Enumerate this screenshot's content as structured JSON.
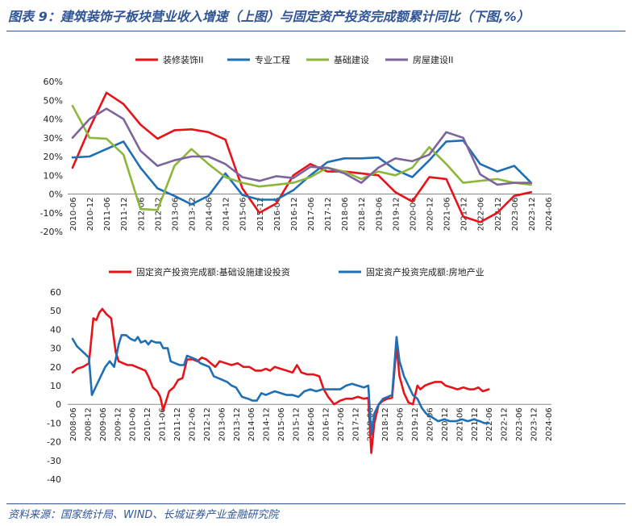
{
  "title": "图表 9：建筑装饰子板块营业收入增速（上图）与固定资产投资完成额累计同比（下图,%）",
  "source": "资料来源：国家统计局、WIND、长城证券产业金融研究院",
  "chart_data": [
    {
      "type": "line",
      "ylim": [
        -20,
        60
      ],
      "yticks": [
        "-20%",
        "-10%",
        "0%",
        "10%",
        "20%",
        "30%",
        "40%",
        "50%",
        "60%"
      ],
      "x_labels": [
        "2010-06",
        "2010-12",
        "2011-06",
        "2011-12",
        "2012-06",
        "2012-12",
        "2013-06",
        "2013-12",
        "2014-06",
        "2014-12",
        "2015-06",
        "2015-12",
        "2016-06",
        "2016-12",
        "2017-06",
        "2017-12",
        "2018-06",
        "2018-12",
        "2019-06",
        "2019-12",
        "2020-06",
        "2020-12",
        "2021-06",
        "2021-12",
        "2022-06",
        "2022-12",
        "2023-06",
        "2023-12",
        "2024-06"
      ],
      "series": [
        {
          "name": "装修装饰II",
          "color": "#E8131A",
          "values": [
            14,
            35,
            54,
            48,
            37,
            29.5,
            34,
            34.5,
            33,
            29,
            3,
            -10,
            -5,
            10,
            16,
            12,
            12,
            11,
            10,
            1,
            -4,
            9,
            8,
            -12,
            -15,
            -10,
            -1,
            1,
            null
          ]
        },
        {
          "name": "专业工程",
          "color": "#1F6FB5",
          "values": [
            19.5,
            20,
            24,
            28,
            14,
            3,
            -1,
            -5.5,
            -1,
            11,
            -0.5,
            -3,
            -3,
            2,
            10,
            17,
            19,
            19,
            19.5,
            13,
            9,
            18,
            28,
            28.5,
            16,
            12,
            15,
            6,
            null
          ]
        },
        {
          "name": "基础建设",
          "color": "#8CB63C",
          "values": [
            47,
            30,
            29.5,
            21,
            -8,
            -8.5,
            15,
            24,
            16,
            9,
            6,
            4,
            5,
            6,
            9,
            14,
            12,
            8,
            12,
            10,
            14,
            25,
            16,
            6,
            7,
            8,
            6,
            5,
            null
          ]
        },
        {
          "name": "房屋建设II",
          "color": "#7E649E",
          "values": [
            30,
            40,
            45.5,
            40,
            23,
            15,
            18,
            20,
            20,
            16,
            9,
            7,
            9.5,
            8.5,
            14.5,
            14,
            11,
            6,
            14,
            19,
            17.5,
            21,
            33,
            30,
            10.5,
            5,
            6,
            6,
            null
          ]
        }
      ]
    },
    {
      "type": "line",
      "ylim": [
        -40,
        60
      ],
      "yticks": [
        "-40",
        "-30",
        "-20",
        "-10",
        "0",
        "10",
        "20",
        "30",
        "40",
        "50",
        "60"
      ],
      "x_labels": [
        "2008-06",
        "2008-12",
        "2009-06",
        "2009-12",
        "2010-06",
        "2010-12",
        "2011-06",
        "2011-12",
        "2012-06",
        "2012-12",
        "2013-06",
        "2013-12",
        "2014-06",
        "2014-12",
        "2015-06",
        "2015-12",
        "2016-06",
        "2016-12",
        "2017-06",
        "2017-12",
        "2018-06",
        "2018-12",
        "2019-06",
        "2019-12",
        "2020-06",
        "2020-12",
        "2021-06",
        "2021-12",
        "2022-06",
        "2022-12",
        "2023-06",
        "2023-12",
        "2024-06"
      ],
      "series": [
        {
          "name": "固定资产投资完成额:基础设施建设投资",
          "color": "#E8131A",
          "points": [
            [
              0,
              17
            ],
            [
              0.3,
              19
            ],
            [
              0.7,
              20
            ],
            [
              1.1,
              22
            ],
            [
              1.4,
              46
            ],
            [
              1.6,
              45
            ],
            [
              1.8,
              49
            ],
            [
              2.0,
              51
            ],
            [
              2.3,
              48
            ],
            [
              2.6,
              46
            ],
            [
              2.9,
              28
            ],
            [
              3.1,
              23
            ],
            [
              3.4,
              22
            ],
            [
              3.7,
              21
            ],
            [
              4.0,
              21
            ],
            [
              4.3,
              20
            ],
            [
              4.6,
              19
            ],
            [
              4.9,
              18
            ],
            [
              5.1,
              15
            ],
            [
              5.4,
              9
            ],
            [
              5.7,
              7
            ],
            [
              5.9,
              4
            ],
            [
              6.1,
              -3
            ],
            [
              6.3,
              2
            ],
            [
              6.5,
              7
            ],
            [
              6.8,
              9
            ],
            [
              7.1,
              13
            ],
            [
              7.4,
              14
            ],
            [
              7.7,
              24
            ],
            [
              8.1,
              24
            ],
            [
              8.4,
              23
            ],
            [
              8.7,
              25
            ],
            [
              9.0,
              24
            ],
            [
              9.3,
              22
            ],
            [
              9.6,
              20
            ],
            [
              9.9,
              23
            ],
            [
              10.3,
              22
            ],
            [
              10.7,
              21
            ],
            [
              11.1,
              22
            ],
            [
              11.5,
              20
            ],
            [
              11.9,
              20
            ],
            [
              12.3,
              18
            ],
            [
              12.7,
              18
            ],
            [
              13.0,
              19
            ],
            [
              13.3,
              18
            ],
            [
              13.6,
              20
            ],
            [
              14.0,
              19
            ],
            [
              14.4,
              18
            ],
            [
              14.8,
              17
            ],
            [
              15.1,
              21
            ],
            [
              15.4,
              17
            ],
            [
              15.8,
              16
            ],
            [
              16.2,
              16
            ],
            [
              16.6,
              15
            ],
            [
              16.9,
              8
            ],
            [
              17.2,
              4
            ],
            [
              17.6,
              0
            ],
            [
              18.0,
              2
            ],
            [
              18.4,
              3
            ],
            [
              18.8,
              3
            ],
            [
              19.2,
              4
            ],
            [
              19.6,
              3
            ],
            [
              19.9,
              3.5
            ],
            [
              20.1,
              -26
            ],
            [
              20.3,
              -10
            ],
            [
              20.6,
              0
            ],
            [
              20.9,
              2
            ],
            [
              21.2,
              3
            ],
            [
              21.5,
              3.5
            ],
            [
              21.8,
              31
            ],
            [
              22.0,
              15
            ],
            [
              22.3,
              6
            ],
            [
              22.6,
              1
            ],
            [
              22.9,
              0
            ],
            [
              23.2,
              10
            ],
            [
              23.4,
              8
            ],
            [
              23.7,
              10
            ],
            [
              24.0,
              11
            ],
            [
              24.4,
              12
            ],
            [
              24.8,
              12
            ],
            [
              25.1,
              10
            ],
            [
              25.5,
              9
            ],
            [
              25.9,
              8
            ],
            [
              26.3,
              9
            ],
            [
              26.7,
              8
            ],
            [
              27.0,
              8
            ],
            [
              27.3,
              9
            ],
            [
              27.6,
              7
            ],
            [
              28.0,
              8
            ]
          ]
        },
        {
          "name": "固定资产投资完成额:房地产业",
          "color": "#1F6FB5",
          "points": [
            [
              0,
              35
            ],
            [
              0.3,
              31
            ],
            [
              0.7,
              28
            ],
            [
              1.1,
              25
            ],
            [
              1.3,
              5
            ],
            [
              1.6,
              10
            ],
            [
              1.9,
              15
            ],
            [
              2.2,
              20
            ],
            [
              2.5,
              23
            ],
            [
              2.8,
              20
            ],
            [
              3.1,
              32
            ],
            [
              3.3,
              37
            ],
            [
              3.6,
              37
            ],
            [
              3.9,
              35
            ],
            [
              4.2,
              34
            ],
            [
              4.4,
              36
            ],
            [
              4.6,
              33
            ],
            [
              4.9,
              34
            ],
            [
              5.1,
              32
            ],
            [
              5.3,
              34
            ],
            [
              5.6,
              33
            ],
            [
              5.9,
              33
            ],
            [
              6.1,
              30
            ],
            [
              6.4,
              30
            ],
            [
              6.6,
              23
            ],
            [
              6.9,
              22
            ],
            [
              7.2,
              21
            ],
            [
              7.5,
              21
            ],
            [
              7.7,
              26
            ],
            [
              8.0,
              25
            ],
            [
              8.3,
              24
            ],
            [
              8.6,
              22
            ],
            [
              8.9,
              21
            ],
            [
              9.2,
              20
            ],
            [
              9.5,
              15
            ],
            [
              9.8,
              14
            ],
            [
              10.1,
              13
            ],
            [
              10.4,
              12
            ],
            [
              10.7,
              10
            ],
            [
              11.0,
              9
            ],
            [
              11.4,
              4
            ],
            [
              11.8,
              3
            ],
            [
              12.1,
              2
            ],
            [
              12.4,
              2
            ],
            [
              12.7,
              6
            ],
            [
              13.0,
              5
            ],
            [
              13.3,
              6
            ],
            [
              13.6,
              7
            ],
            [
              14.0,
              6
            ],
            [
              14.4,
              5
            ],
            [
              14.8,
              5
            ],
            [
              15.2,
              4
            ],
            [
              15.6,
              7
            ],
            [
              16.0,
              8
            ],
            [
              16.4,
              7
            ],
            [
              16.8,
              8
            ],
            [
              17.2,
              8
            ],
            [
              17.6,
              8
            ],
            [
              18.0,
              8
            ],
            [
              18.4,
              10
            ],
            [
              18.8,
              11
            ],
            [
              19.2,
              10
            ],
            [
              19.6,
              9
            ],
            [
              19.9,
              10
            ],
            [
              20.1,
              -16
            ],
            [
              20.3,
              -5
            ],
            [
              20.6,
              0
            ],
            [
              20.9,
              3
            ],
            [
              21.2,
              4
            ],
            [
              21.5,
              5
            ],
            [
              21.8,
              36
            ],
            [
              22.0,
              23
            ],
            [
              22.3,
              15
            ],
            [
              22.6,
              10
            ],
            [
              22.9,
              5
            ],
            [
              23.2,
              3
            ],
            [
              23.5,
              -2
            ],
            [
              23.8,
              -5
            ],
            [
              24.2,
              -7
            ],
            [
              24.6,
              -9
            ],
            [
              25.0,
              -8
            ],
            [
              25.4,
              -9
            ],
            [
              25.8,
              -9
            ],
            [
              26.2,
              -8
            ],
            [
              26.6,
              -9
            ],
            [
              27.0,
              -8
            ],
            [
              27.4,
              -9
            ],
            [
              27.7,
              -10
            ],
            [
              28.0,
              -10
            ]
          ]
        }
      ]
    }
  ]
}
